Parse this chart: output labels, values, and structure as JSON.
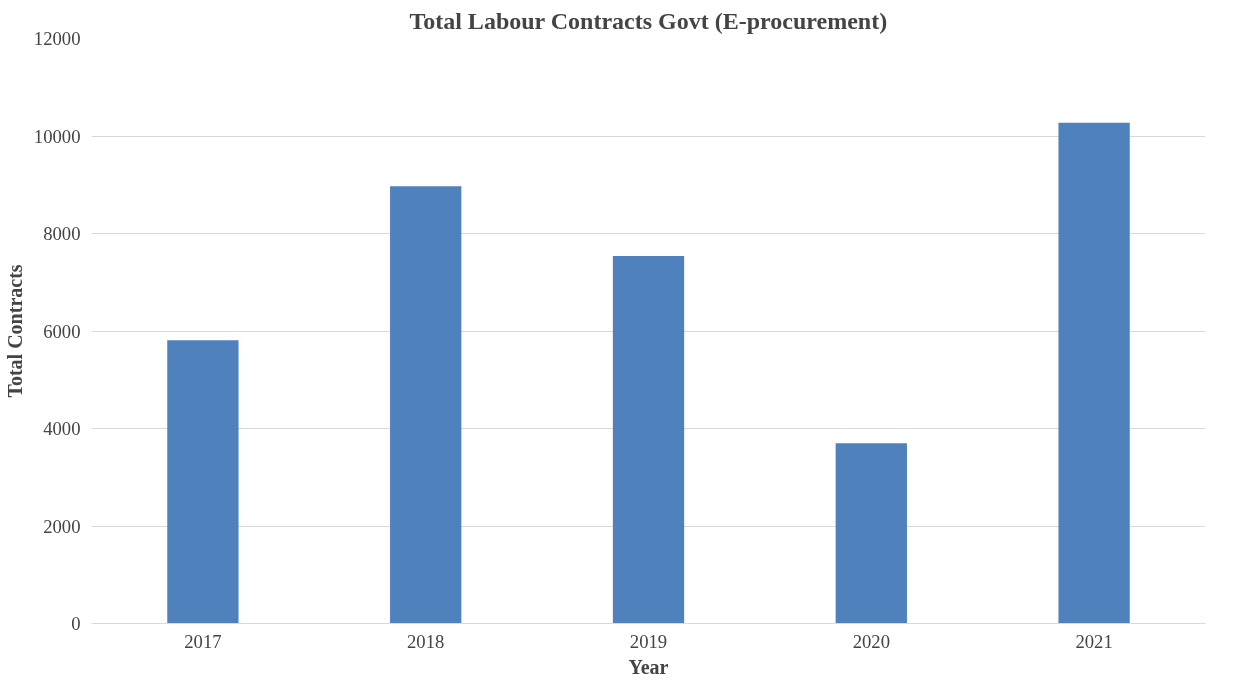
{
  "chart_data": {
    "type": "bar",
    "title": "Total Labour Contracts Govt (E-procurement)",
    "xlabel": "Year",
    "ylabel": "Total Contracts",
    "categories": [
      "2017",
      "2018",
      "2019",
      "2020",
      "2021"
    ],
    "values": [
      5810,
      8970,
      7540,
      3700,
      10270
    ],
    "color": "#4f81bd",
    "ylim": [
      0,
      12000
    ],
    "yticks": [
      0,
      2000,
      4000,
      6000,
      8000,
      10000,
      12000
    ],
    "grid": "y"
  }
}
